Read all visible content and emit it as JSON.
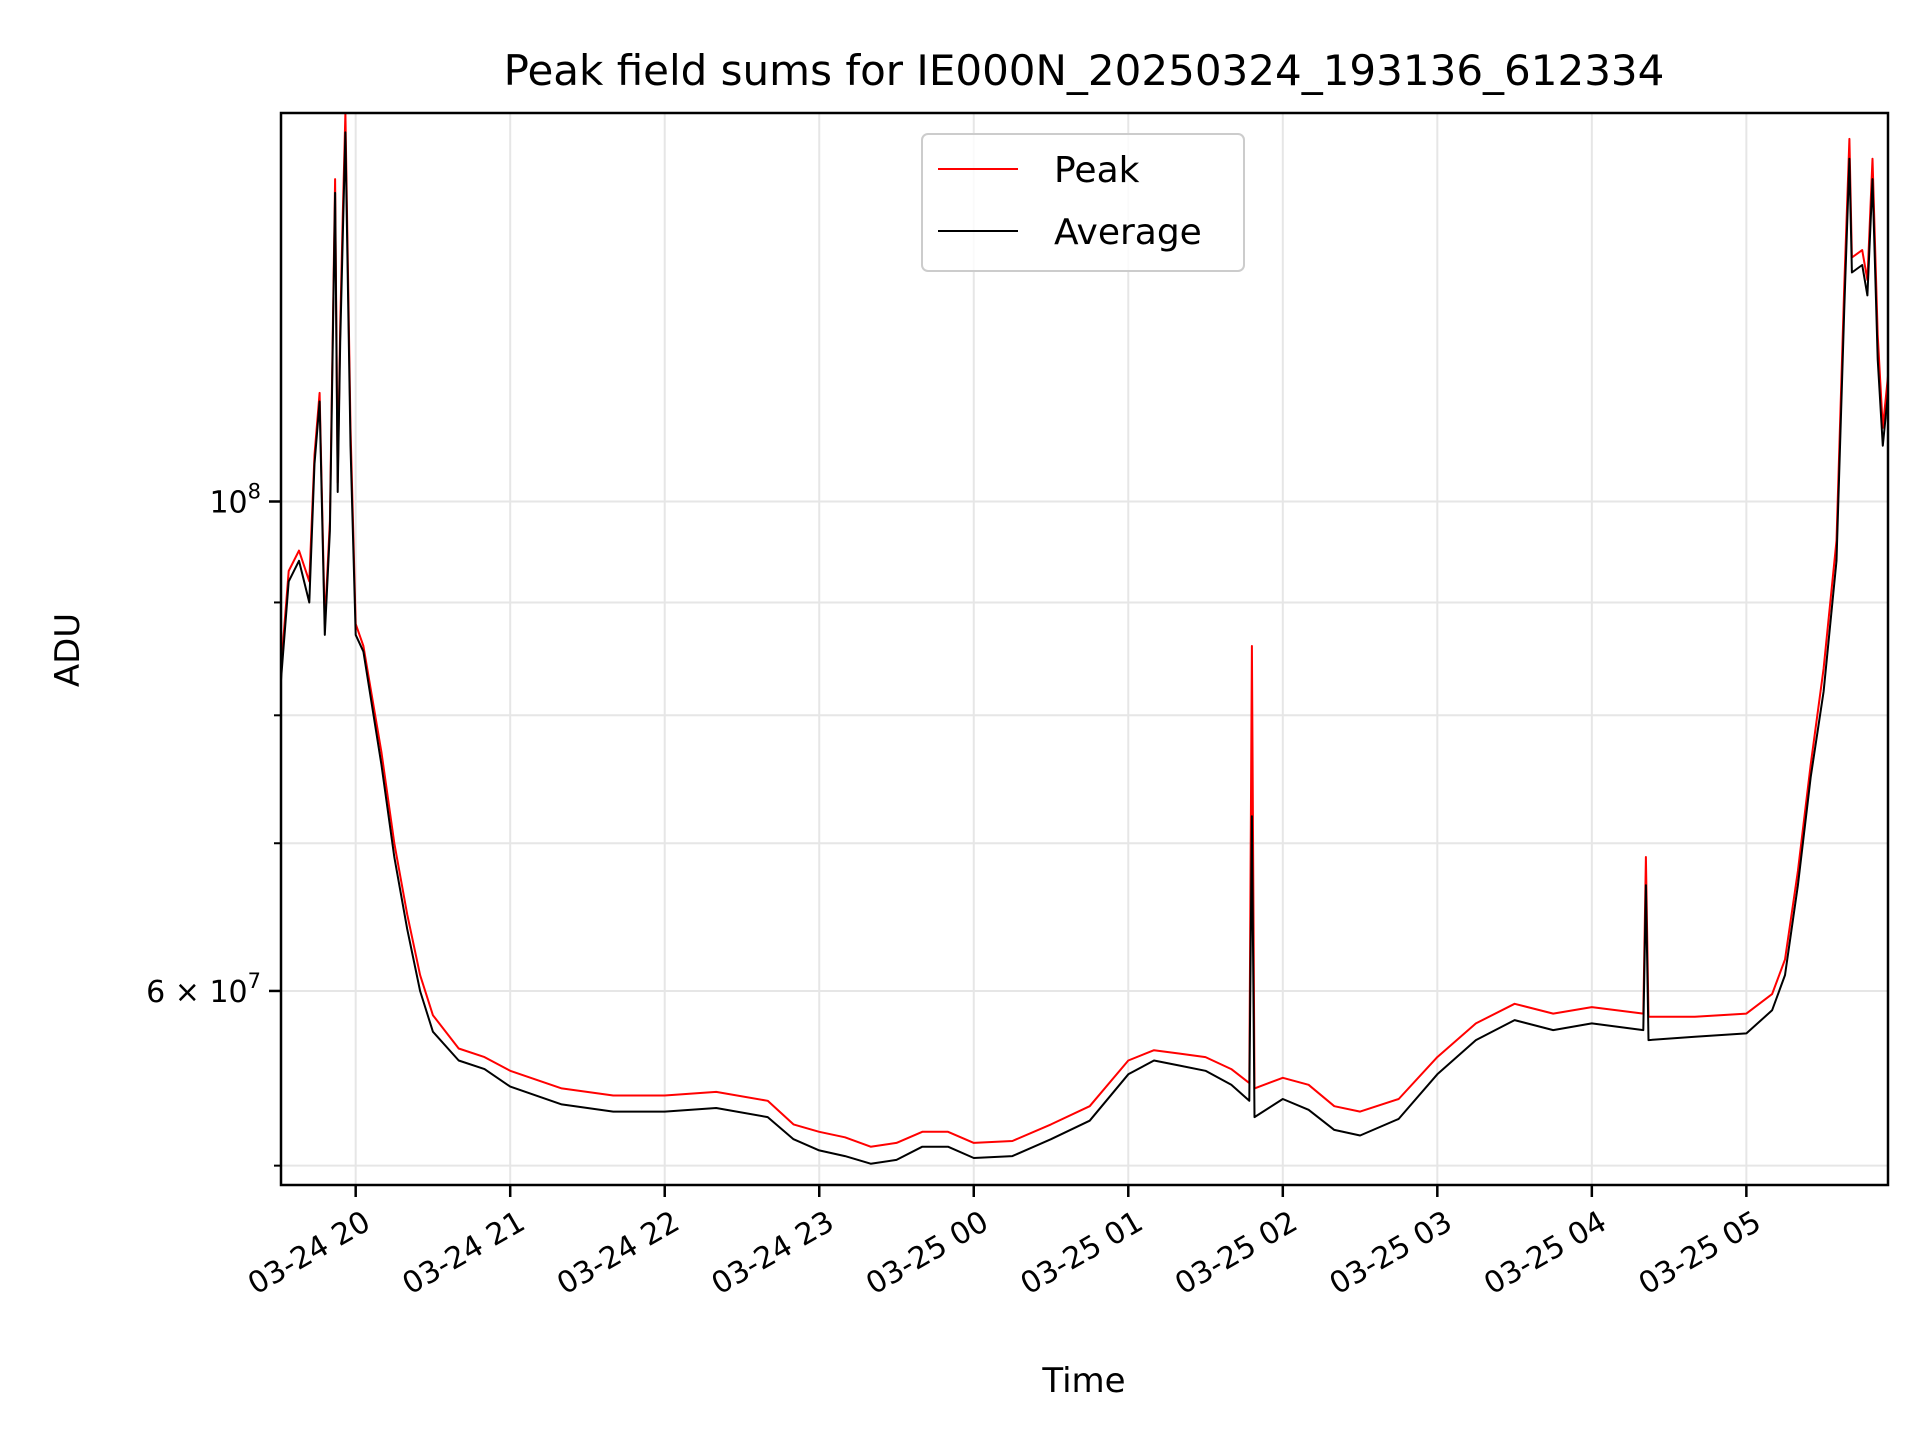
{
  "chart_data": {
    "type": "line",
    "title": "Peak field sums for IE000N_20250324_193136_612334",
    "xlabel": "Time",
    "ylabel": "ADU",
    "y_scale": "log",
    "ylim": [
      49000000,
      150000000
    ],
    "xlim": [
      "2025-03-24 19:31",
      "2025-03-25 05:55"
    ],
    "x_tick_labels": [
      "03-24 20",
      "03-24 21",
      "03-24 22",
      "03-24 23",
      "03-25 00",
      "03-25 01",
      "03-25 02",
      "03-25 03",
      "03-25 04",
      "03-25 05"
    ],
    "x_tick_times": [
      "2025-03-24 20:00",
      "2025-03-24 21:00",
      "2025-03-24 22:00",
      "2025-03-24 23:00",
      "2025-03-25 00:00",
      "2025-03-25 01:00",
      "2025-03-25 02:00",
      "2025-03-25 03:00",
      "2025-03-25 04:00",
      "2025-03-25 05:00"
    ],
    "y_ticks": [
      {
        "value": 100000000,
        "base": "10",
        "exponent": "8",
        "mantissa": ""
      },
      {
        "value": 60000000,
        "base": "10",
        "exponent": "7",
        "mantissa": "6"
      }
    ],
    "y_minor_ticks": [
      50000000,
      70000000,
      80000000,
      90000000
    ],
    "grid": true,
    "legend_position": "top-center",
    "series": [
      {
        "name": "Peak",
        "color": "#ff0000",
        "points": [
          [
            "2025-03-24 19:31",
            84000000
          ],
          [
            "2025-03-24 19:34",
            93000000
          ],
          [
            "2025-03-24 19:38",
            95000000
          ],
          [
            "2025-03-24 19:42",
            92000000
          ],
          [
            "2025-03-24 19:44",
            105000000
          ],
          [
            "2025-03-24 19:46",
            112000000
          ],
          [
            "2025-03-24 19:48",
            88000000
          ],
          [
            "2025-03-24 19:50",
            98000000
          ],
          [
            "2025-03-24 19:53",
            102000000
          ],
          [
            "2025-03-24 19:54",
            120000000
          ],
          [
            "2025-03-24 19:55",
            135000000
          ],
          [
            "2025-03-24 19:52",
            140000000
          ],
          [
            "2025-03-24 19:56",
            150000000
          ],
          [
            "2025-03-24 19:58",
            108000000
          ],
          [
            "2025-03-24 20:00",
            88000000
          ],
          [
            "2025-03-24 20:03",
            86000000
          ],
          [
            "2025-03-24 20:10",
            77000000
          ],
          [
            "2025-03-24 20:15",
            70000000
          ],
          [
            "2025-03-24 20:20",
            65000000
          ],
          [
            "2025-03-24 20:25",
            61000000
          ],
          [
            "2025-03-24 20:30",
            58500000
          ],
          [
            "2025-03-24 20:40",
            56500000
          ],
          [
            "2025-03-24 20:50",
            56000000
          ],
          [
            "2025-03-24 21:00",
            55200000
          ],
          [
            "2025-03-24 21:20",
            54200000
          ],
          [
            "2025-03-24 21:40",
            53800000
          ],
          [
            "2025-03-24 22:00",
            53800000
          ],
          [
            "2025-03-24 22:20",
            54000000
          ],
          [
            "2025-03-24 22:40",
            53500000
          ],
          [
            "2025-03-24 22:50",
            52200000
          ],
          [
            "2025-03-24 23:00",
            51800000
          ],
          [
            "2025-03-24 23:10",
            51500000
          ],
          [
            "2025-03-24 23:20",
            51000000
          ],
          [
            "2025-03-24 23:30",
            51200000
          ],
          [
            "2025-03-24 23:40",
            51800000
          ],
          [
            "2025-03-24 23:50",
            51800000
          ],
          [
            "2025-03-25 00:00",
            51200000
          ],
          [
            "2025-03-25 00:15",
            51300000
          ],
          [
            "2025-03-25 00:30",
            52200000
          ],
          [
            "2025-03-25 00:45",
            53200000
          ],
          [
            "2025-03-25 01:00",
            55800000
          ],
          [
            "2025-03-25 01:10",
            56400000
          ],
          [
            "2025-03-25 01:20",
            56200000
          ],
          [
            "2025-03-25 01:30",
            56000000
          ],
          [
            "2025-03-25 01:40",
            55300000
          ],
          [
            "2025-03-25 01:47",
            54500000
          ],
          [
            "2025-03-25 01:48",
            86000000
          ],
          [
            "2025-03-25 01:49",
            54200000
          ],
          [
            "2025-03-25 02:00",
            54800000
          ],
          [
            "2025-03-25 02:10",
            54400000
          ],
          [
            "2025-03-25 02:20",
            53200000
          ],
          [
            "2025-03-25 02:30",
            52900000
          ],
          [
            "2025-03-25 02:45",
            53600000
          ],
          [
            "2025-03-25 03:00",
            56000000
          ],
          [
            "2025-03-25 03:15",
            58000000
          ],
          [
            "2025-03-25 03:30",
            59200000
          ],
          [
            "2025-03-25 03:45",
            58600000
          ],
          [
            "2025-03-25 04:00",
            59000000
          ],
          [
            "2025-03-25 04:20",
            58600000
          ],
          [
            "2025-03-25 04:21",
            69000000
          ],
          [
            "2025-03-25 04:22",
            58400000
          ],
          [
            "2025-03-25 04:40",
            58400000
          ],
          [
            "2025-03-25 05:00",
            58600000
          ],
          [
            "2025-03-25 05:10",
            59800000
          ],
          [
            "2025-03-25 05:15",
            62000000
          ],
          [
            "2025-03-25 05:20",
            68000000
          ],
          [
            "2025-03-25 05:25",
            76000000
          ],
          [
            "2025-03-25 05:30",
            84000000
          ],
          [
            "2025-03-25 05:35",
            96000000
          ],
          [
            "2025-03-25 05:38",
            125000000
          ],
          [
            "2025-03-25 05:40",
            146000000
          ],
          [
            "2025-03-25 05:41",
            129000000
          ],
          [
            "2025-03-25 05:45",
            130000000
          ],
          [
            "2025-03-25 05:47",
            126000000
          ],
          [
            "2025-03-25 05:49",
            143000000
          ],
          [
            "2025-03-25 05:51",
            119000000
          ],
          [
            "2025-03-25 05:53",
            108000000
          ],
          [
            "2025-03-25 05:55",
            114000000
          ]
        ]
      },
      {
        "name": "Average",
        "color": "#000000",
        "points": [
          [
            "2025-03-24 19:31",
            83000000
          ],
          [
            "2025-03-24 19:34",
            92000000
          ],
          [
            "2025-03-24 19:38",
            94000000
          ],
          [
            "2025-03-24 19:42",
            90000000
          ],
          [
            "2025-03-24 19:44",
            104000000
          ],
          [
            "2025-03-24 19:46",
            111000000
          ],
          [
            "2025-03-24 19:48",
            87000000
          ],
          [
            "2025-03-24 19:50",
            97000000
          ],
          [
            "2025-03-24 19:53",
            101000000
          ],
          [
            "2025-03-24 19:54",
            118000000
          ],
          [
            "2025-03-24 19:55",
            132000000
          ],
          [
            "2025-03-24 19:52",
            138000000
          ],
          [
            "2025-03-24 19:56",
            147000000
          ],
          [
            "2025-03-24 19:58",
            106000000
          ],
          [
            "2025-03-24 20:00",
            87000000
          ],
          [
            "2025-03-24 20:03",
            85500000
          ],
          [
            "2025-03-24 20:10",
            76000000
          ],
          [
            "2025-03-24 20:15",
            69000000
          ],
          [
            "2025-03-24 20:20",
            64000000
          ],
          [
            "2025-03-24 20:25",
            60000000
          ],
          [
            "2025-03-24 20:30",
            57500000
          ],
          [
            "2025-03-24 20:40",
            55800000
          ],
          [
            "2025-03-24 20:50",
            55300000
          ],
          [
            "2025-03-24 21:00",
            54300000
          ],
          [
            "2025-03-24 21:20",
            53300000
          ],
          [
            "2025-03-24 21:40",
            52900000
          ],
          [
            "2025-03-24 22:00",
            52900000
          ],
          [
            "2025-03-24 22:20",
            53100000
          ],
          [
            "2025-03-24 22:40",
            52600000
          ],
          [
            "2025-03-24 22:50",
            51400000
          ],
          [
            "2025-03-24 23:00",
            50800000
          ],
          [
            "2025-03-24 23:10",
            50500000
          ],
          [
            "2025-03-24 23:20",
            50100000
          ],
          [
            "2025-03-24 23:30",
            50300000
          ],
          [
            "2025-03-24 23:40",
            51000000
          ],
          [
            "2025-03-24 23:50",
            51000000
          ],
          [
            "2025-03-25 00:00",
            50400000
          ],
          [
            "2025-03-25 00:15",
            50500000
          ],
          [
            "2025-03-25 00:30",
            51400000
          ],
          [
            "2025-03-25 00:45",
            52400000
          ],
          [
            "2025-03-25 01:00",
            55000000
          ],
          [
            "2025-03-25 01:10",
            55800000
          ],
          [
            "2025-03-25 01:20",
            55500000
          ],
          [
            "2025-03-25 01:30",
            55200000
          ],
          [
            "2025-03-25 01:40",
            54400000
          ],
          [
            "2025-03-25 01:47",
            53500000
          ],
          [
            "2025-03-25 01:48",
            72000000
          ],
          [
            "2025-03-25 01:49",
            52600000
          ],
          [
            "2025-03-25 02:00",
            53600000
          ],
          [
            "2025-03-25 02:10",
            53000000
          ],
          [
            "2025-03-25 02:20",
            51900000
          ],
          [
            "2025-03-25 02:30",
            51600000
          ],
          [
            "2025-03-25 02:45",
            52500000
          ],
          [
            "2025-03-25 03:00",
            55000000
          ],
          [
            "2025-03-25 03:15",
            57000000
          ],
          [
            "2025-03-25 03:30",
            58200000
          ],
          [
            "2025-03-25 03:45",
            57600000
          ],
          [
            "2025-03-25 04:00",
            58000000
          ],
          [
            "2025-03-25 04:20",
            57600000
          ],
          [
            "2025-03-25 04:21",
            67000000
          ],
          [
            "2025-03-25 04:22",
            57000000
          ],
          [
            "2025-03-25 04:40",
            57200000
          ],
          [
            "2025-03-25 05:00",
            57400000
          ],
          [
            "2025-03-25 05:10",
            58800000
          ],
          [
            "2025-03-25 05:15",
            61000000
          ],
          [
            "2025-03-25 05:20",
            67000000
          ],
          [
            "2025-03-25 05:25",
            75000000
          ],
          [
            "2025-03-25 05:30",
            82000000
          ],
          [
            "2025-03-25 05:35",
            94000000
          ],
          [
            "2025-03-25 05:38",
            122000000
          ],
          [
            "2025-03-25 05:40",
            143000000
          ],
          [
            "2025-03-25 05:41",
            127000000
          ],
          [
            "2025-03-25 05:45",
            128000000
          ],
          [
            "2025-03-25 05:47",
            124000000
          ],
          [
            "2025-03-25 05:49",
            140000000
          ],
          [
            "2025-03-25 05:51",
            116000000
          ],
          [
            "2025-03-25 05:53",
            106000000
          ],
          [
            "2025-03-25 05:55",
            112000000
          ]
        ]
      }
    ]
  }
}
